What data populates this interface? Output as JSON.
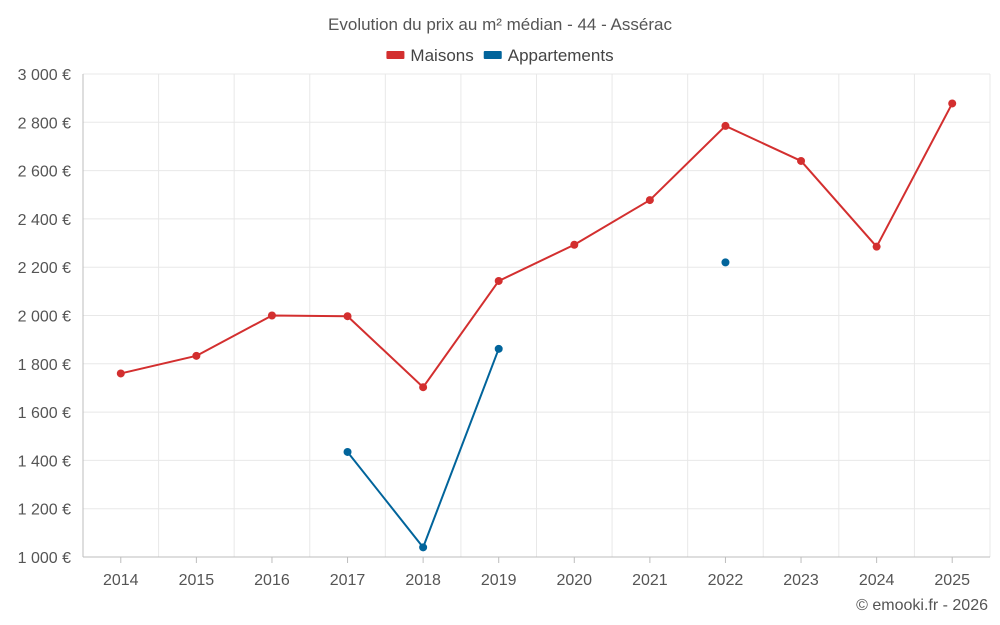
{
  "chart_data": {
    "type": "line",
    "title": "Evolution du prix au m² médian - 44 - Assérac",
    "categories": [
      "2014",
      "2015",
      "2016",
      "2017",
      "2018",
      "2019",
      "2020",
      "2021",
      "2022",
      "2023",
      "2024",
      "2025"
    ],
    "ylim": [
      1000,
      3000
    ],
    "yticks": [
      1000,
      1200,
      1400,
      1600,
      1800,
      2000,
      2200,
      2400,
      2600,
      2800,
      3000
    ],
    "ytick_labels": [
      "1 000 €",
      "1 200 €",
      "1 400 €",
      "1 600 €",
      "1 800 €",
      "2 000 €",
      "2 200 €",
      "2 400 €",
      "2 600 €",
      "2 800 €",
      "3 000 €"
    ],
    "xlabel": "",
    "ylabel": "",
    "grid": true,
    "legend_position": "top-center",
    "series": [
      {
        "name": "Maisons",
        "color": "#d32f2f",
        "values": [
          1760,
          1833,
          2000,
          1997,
          1703,
          2143,
          2293,
          2478,
          2785,
          2640,
          2285,
          2878
        ]
      },
      {
        "name": "Appartements",
        "color": "#01649b",
        "values": [
          null,
          null,
          null,
          1435,
          1040,
          1862,
          null,
          null,
          2220,
          null,
          null,
          null
        ]
      }
    ]
  },
  "credit": "© emooki.fr - 2026"
}
